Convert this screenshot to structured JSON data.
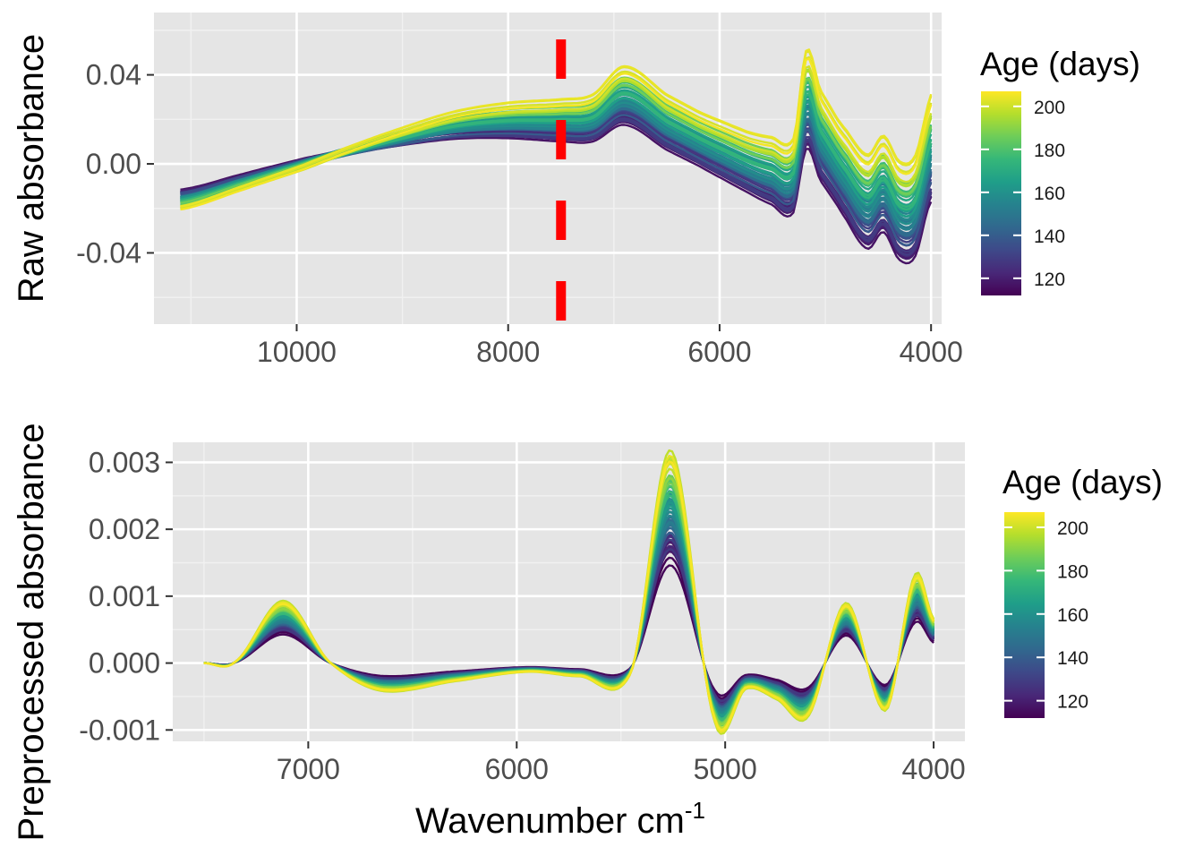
{
  "chart_data": [
    {
      "type": "line",
      "title": "",
      "xlabel": "",
      "ylabel": "Raw absorbance",
      "x_reversed": true,
      "xlim": [
        11350,
        3900
      ],
      "ylim": [
        -0.072,
        0.068
      ],
      "x_ticks": [
        10000,
        8000,
        6000,
        4000
      ],
      "x_tick_labels": [
        "10000",
        "8000",
        "6000",
        "4000"
      ],
      "y_ticks": [
        -0.04,
        0.0,
        0.04
      ],
      "y_tick_labels": [
        "-0.04",
        "0.00",
        "0.04"
      ],
      "grid": true,
      "vline": {
        "x": 7500,
        "style": "dashed",
        "color": "#ff0000"
      },
      "legend": {
        "title": "Age (days)",
        "placement": "right",
        "ticks": [
          120,
          140,
          160,
          180,
          200
        ],
        "tick_labels": [
          "120",
          "140",
          "160",
          "180",
          "200"
        ],
        "range": [
          112,
          207
        ]
      },
      "n_spectra": 60,
      "age_range": [
        112,
        207
      ],
      "series_shape": [
        {
          "x": 11100,
          "y": -0.016
        },
        {
          "x": 10500,
          "y": -0.008
        },
        {
          "x": 10000,
          "y": -0.001
        },
        {
          "x": 9500,
          "y": 0.006
        },
        {
          "x": 9000,
          "y": 0.012
        },
        {
          "x": 8500,
          "y": 0.017
        },
        {
          "x": 8000,
          "y": 0.019
        },
        {
          "x": 7500,
          "y": 0.019
        },
        {
          "x": 7200,
          "y": 0.02
        },
        {
          "x": 6900,
          "y": 0.03
        },
        {
          "x": 6500,
          "y": 0.018
        },
        {
          "x": 6000,
          "y": 0.006
        },
        {
          "x": 5500,
          "y": -0.004
        },
        {
          "x": 5300,
          "y": -0.006
        },
        {
          "x": 5180,
          "y": 0.028
        },
        {
          "x": 5050,
          "y": 0.012
        },
        {
          "x": 4800,
          "y": -0.006
        },
        {
          "x": 4600,
          "y": -0.018
        },
        {
          "x": 4450,
          "y": -0.01
        },
        {
          "x": 4300,
          "y": -0.022
        },
        {
          "x": 4150,
          "y": -0.02
        },
        {
          "x": 4000,
          "y": 0.006
        }
      ],
      "spread_per_age": "higher age shifts long-wavelength end down and peaks up; overall y range -0.065 to 0.061"
    },
    {
      "type": "line",
      "title": "",
      "xlabel": "Wavenumber cm",
      "xlabel_superscript": "-1",
      "ylabel": "Preprocessed absorbance",
      "x_reversed": true,
      "xlim": [
        7650,
        3850
      ],
      "ylim": [
        -0.00117,
        0.0033
      ],
      "x_ticks": [
        7000,
        6000,
        5000,
        4000
      ],
      "x_tick_labels": [
        "7000",
        "6000",
        "5000",
        "4000"
      ],
      "y_ticks": [
        -0.001,
        0.0,
        0.001,
        0.002,
        0.003
      ],
      "y_tick_labels": [
        "-0.001",
        "0.000",
        "0.001",
        "0.002",
        "0.003"
      ],
      "grid": true,
      "legend": {
        "title": "Age (days)",
        "placement": "right",
        "ticks": [
          120,
          140,
          160,
          180,
          200
        ],
        "tick_labels": [
          "120",
          "140",
          "160",
          "180",
          "200"
        ],
        "range": [
          112,
          207
        ]
      },
      "n_spectra": 60,
      "age_range": [
        112,
        207
      ],
      "series_shape": [
        {
          "x": 7500,
          "y": 0.0
        },
        {
          "x": 7350,
          "y": 2e-05
        },
        {
          "x": 7120,
          "y": 0.00085
        },
        {
          "x": 6900,
          "y": 2e-05
        },
        {
          "x": 6650,
          "y": -0.00038
        },
        {
          "x": 6300,
          "y": -0.00025
        },
        {
          "x": 5950,
          "y": -0.00012
        },
        {
          "x": 5700,
          "y": -0.00018
        },
        {
          "x": 5450,
          "y": -0.00012
        },
        {
          "x": 5260,
          "y": 0.0029
        },
        {
          "x": 5050,
          "y": -0.0008
        },
        {
          "x": 4900,
          "y": -0.00035
        },
        {
          "x": 4750,
          "y": -0.0005
        },
        {
          "x": 4600,
          "y": -0.00072
        },
        {
          "x": 4420,
          "y": 0.00082
        },
        {
          "x": 4230,
          "y": -0.00065
        },
        {
          "x": 4090,
          "y": 0.0012
        },
        {
          "x": 4000,
          "y": 0.0006
        }
      ],
      "spread_per_age": "peak heights scale with age; overall y range -0.00095 to 0.0031"
    }
  ],
  "colors": {
    "panel_background": "#e5e5e5",
    "grid_major": "#ffffff",
    "grid_minor": "#f1f1f1",
    "vline": "#ff0000",
    "viridis": [
      "#440154",
      "#482878",
      "#3e4989",
      "#31688e",
      "#26828e",
      "#1f9e89",
      "#35b779",
      "#6dcd59",
      "#b4de2c",
      "#fde725"
    ]
  }
}
